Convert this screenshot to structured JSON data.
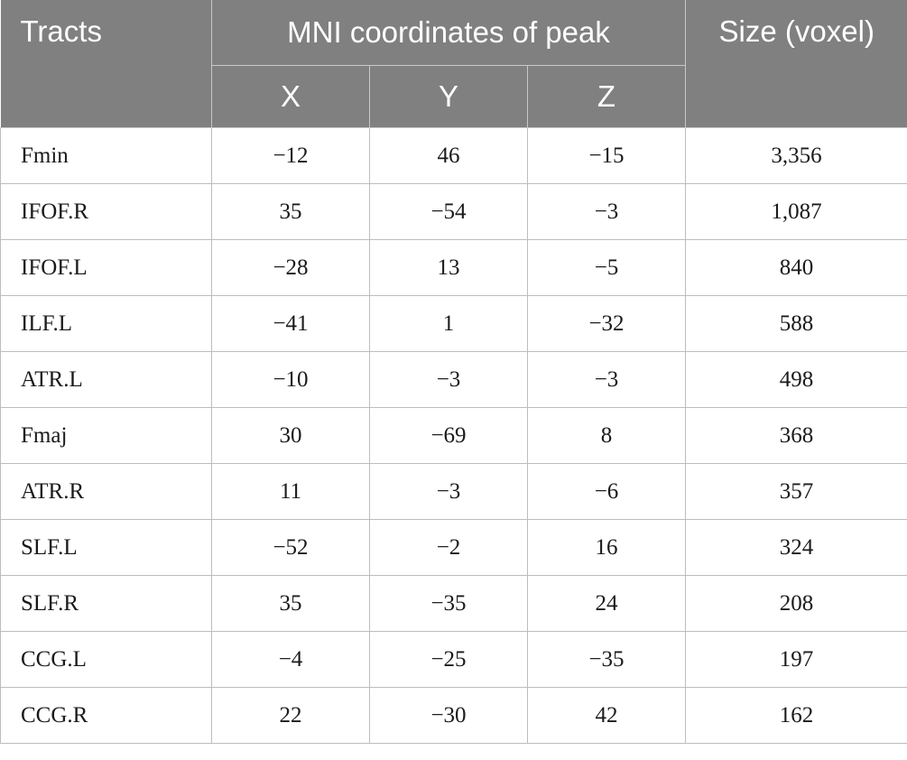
{
  "header": {
    "tracts": "Tracts",
    "mni": "MNI coordinates of peak",
    "size": "Size (voxel)",
    "x": "X",
    "y": "Y",
    "z": "Z"
  },
  "colors": {
    "header_bg": "#7f807f",
    "header_text": "#ffffff",
    "grid": "#bdbdbd"
  },
  "rows": [
    {
      "tract": "Fmin",
      "x": "−12",
      "y": "46",
      "z": "−15",
      "size": "3,356"
    },
    {
      "tract": "IFOF.R",
      "x": "35",
      "y": "−54",
      "z": "−3",
      "size": "1,087"
    },
    {
      "tract": "IFOF.L",
      "x": "−28",
      "y": "13",
      "z": "−5",
      "size": "840"
    },
    {
      "tract": "ILF.L",
      "x": "−41",
      "y": "1",
      "z": "−32",
      "size": "588"
    },
    {
      "tract": "ATR.L",
      "x": "−10",
      "y": "−3",
      "z": "−3",
      "size": "498"
    },
    {
      "tract": "Fmaj",
      "x": "30",
      "y": "−69",
      "z": "8",
      "size": "368"
    },
    {
      "tract": "ATR.R",
      "x": "11",
      "y": "−3",
      "z": "−6",
      "size": "357"
    },
    {
      "tract": "SLF.L",
      "x": "−52",
      "y": "−2",
      "z": "16",
      "size": "324"
    },
    {
      "tract": "SLF.R",
      "x": "35",
      "y": "−35",
      "z": "24",
      "size": "208"
    },
    {
      "tract": "CCG.L",
      "x": "−4",
      "y": "−25",
      "z": "−35",
      "size": "197"
    },
    {
      "tract": "CCG.R",
      "x": "22",
      "y": "−30",
      "z": "42",
      "size": "162"
    }
  ]
}
